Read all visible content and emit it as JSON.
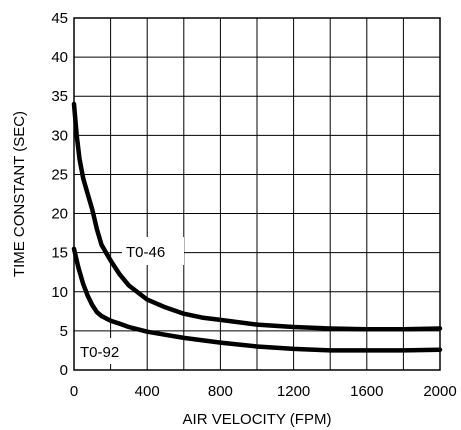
{
  "chart_data": {
    "type": "line",
    "title": "",
    "xlabel": "AIR VELOCITY (FPM)",
    "ylabel": "TIME CONSTANT (SEC)",
    "xlim": [
      0,
      2000
    ],
    "ylim": [
      0,
      45
    ],
    "xticks": [
      "0",
      "400",
      "800",
      "1200",
      "1600",
      "2000"
    ],
    "yticks": [
      "0",
      "5",
      "10",
      "15",
      "20",
      "25",
      "30",
      "35",
      "40",
      "45"
    ],
    "grid": true,
    "series": [
      {
        "name": "T0-46",
        "x": [
          0,
          15,
          30,
          50,
          75,
          100,
          125,
          150,
          200,
          250,
          300,
          400,
          500,
          600,
          700,
          800,
          1000,
          1200,
          1400,
          1600,
          1800,
          2000
        ],
        "y": [
          34,
          30,
          27,
          24.5,
          22.5,
          20.5,
          18,
          16,
          14,
          12.2,
          10.8,
          9,
          8,
          7.2,
          6.7,
          6.4,
          5.8,
          5.5,
          5.3,
          5.2,
          5.2,
          5.3
        ]
      },
      {
        "name": "T0-92",
        "x": [
          0,
          10,
          25,
          50,
          75,
          100,
          125,
          150,
          200,
          250,
          300,
          400,
          500,
          600,
          800,
          1000,
          1200,
          1400,
          1600,
          1800,
          2000
        ],
        "y": [
          15.5,
          14.5,
          13,
          11,
          9.5,
          8.3,
          7.4,
          6.9,
          6.3,
          5.9,
          5.5,
          4.9,
          4.5,
          4.1,
          3.5,
          3,
          2.7,
          2.5,
          2.5,
          2.5,
          2.6
        ]
      }
    ],
    "annotations": [
      {
        "text": "T0-46",
        "series": 0
      },
      {
        "text": "T0-92",
        "series": 1
      }
    ]
  }
}
